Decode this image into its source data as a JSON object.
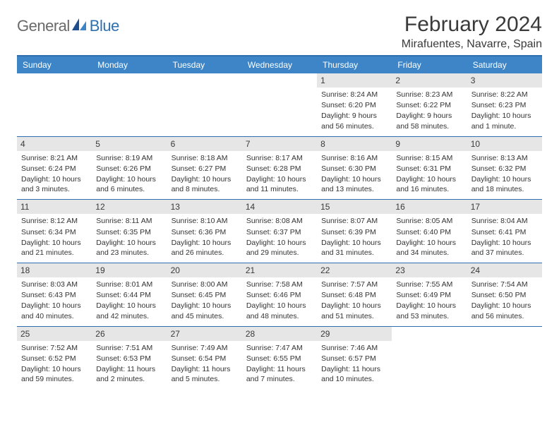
{
  "brand": {
    "general": "General",
    "blue": "Blue"
  },
  "header": {
    "month_title": "February 2024",
    "location": "Mirafuentes, Navarre, Spain"
  },
  "colors": {
    "accent": "#3d85c6",
    "rule": "#2f6fb0",
    "daybar": "#e6e6e6",
    "text": "#3a3a3a"
  },
  "weekdays": [
    "Sunday",
    "Monday",
    "Tuesday",
    "Wednesday",
    "Thursday",
    "Friday",
    "Saturday"
  ],
  "weeks": [
    [
      {
        "n": "",
        "sr": "",
        "ss": "",
        "dl": ""
      },
      {
        "n": "",
        "sr": "",
        "ss": "",
        "dl": ""
      },
      {
        "n": "",
        "sr": "",
        "ss": "",
        "dl": ""
      },
      {
        "n": "",
        "sr": "",
        "ss": "",
        "dl": ""
      },
      {
        "n": "1",
        "sr": "Sunrise: 8:24 AM",
        "ss": "Sunset: 6:20 PM",
        "dl": "Daylight: 9 hours and 56 minutes."
      },
      {
        "n": "2",
        "sr": "Sunrise: 8:23 AM",
        "ss": "Sunset: 6:22 PM",
        "dl": "Daylight: 9 hours and 58 minutes."
      },
      {
        "n": "3",
        "sr": "Sunrise: 8:22 AM",
        "ss": "Sunset: 6:23 PM",
        "dl": "Daylight: 10 hours and 1 minute."
      }
    ],
    [
      {
        "n": "4",
        "sr": "Sunrise: 8:21 AM",
        "ss": "Sunset: 6:24 PM",
        "dl": "Daylight: 10 hours and 3 minutes."
      },
      {
        "n": "5",
        "sr": "Sunrise: 8:19 AM",
        "ss": "Sunset: 6:26 PM",
        "dl": "Daylight: 10 hours and 6 minutes."
      },
      {
        "n": "6",
        "sr": "Sunrise: 8:18 AM",
        "ss": "Sunset: 6:27 PM",
        "dl": "Daylight: 10 hours and 8 minutes."
      },
      {
        "n": "7",
        "sr": "Sunrise: 8:17 AM",
        "ss": "Sunset: 6:28 PM",
        "dl": "Daylight: 10 hours and 11 minutes."
      },
      {
        "n": "8",
        "sr": "Sunrise: 8:16 AM",
        "ss": "Sunset: 6:30 PM",
        "dl": "Daylight: 10 hours and 13 minutes."
      },
      {
        "n": "9",
        "sr": "Sunrise: 8:15 AM",
        "ss": "Sunset: 6:31 PM",
        "dl": "Daylight: 10 hours and 16 minutes."
      },
      {
        "n": "10",
        "sr": "Sunrise: 8:13 AM",
        "ss": "Sunset: 6:32 PM",
        "dl": "Daylight: 10 hours and 18 minutes."
      }
    ],
    [
      {
        "n": "11",
        "sr": "Sunrise: 8:12 AM",
        "ss": "Sunset: 6:34 PM",
        "dl": "Daylight: 10 hours and 21 minutes."
      },
      {
        "n": "12",
        "sr": "Sunrise: 8:11 AM",
        "ss": "Sunset: 6:35 PM",
        "dl": "Daylight: 10 hours and 23 minutes."
      },
      {
        "n": "13",
        "sr": "Sunrise: 8:10 AM",
        "ss": "Sunset: 6:36 PM",
        "dl": "Daylight: 10 hours and 26 minutes."
      },
      {
        "n": "14",
        "sr": "Sunrise: 8:08 AM",
        "ss": "Sunset: 6:37 PM",
        "dl": "Daylight: 10 hours and 29 minutes."
      },
      {
        "n": "15",
        "sr": "Sunrise: 8:07 AM",
        "ss": "Sunset: 6:39 PM",
        "dl": "Daylight: 10 hours and 31 minutes."
      },
      {
        "n": "16",
        "sr": "Sunrise: 8:05 AM",
        "ss": "Sunset: 6:40 PM",
        "dl": "Daylight: 10 hours and 34 minutes."
      },
      {
        "n": "17",
        "sr": "Sunrise: 8:04 AM",
        "ss": "Sunset: 6:41 PM",
        "dl": "Daylight: 10 hours and 37 minutes."
      }
    ],
    [
      {
        "n": "18",
        "sr": "Sunrise: 8:03 AM",
        "ss": "Sunset: 6:43 PM",
        "dl": "Daylight: 10 hours and 40 minutes."
      },
      {
        "n": "19",
        "sr": "Sunrise: 8:01 AM",
        "ss": "Sunset: 6:44 PM",
        "dl": "Daylight: 10 hours and 42 minutes."
      },
      {
        "n": "20",
        "sr": "Sunrise: 8:00 AM",
        "ss": "Sunset: 6:45 PM",
        "dl": "Daylight: 10 hours and 45 minutes."
      },
      {
        "n": "21",
        "sr": "Sunrise: 7:58 AM",
        "ss": "Sunset: 6:46 PM",
        "dl": "Daylight: 10 hours and 48 minutes."
      },
      {
        "n": "22",
        "sr": "Sunrise: 7:57 AM",
        "ss": "Sunset: 6:48 PM",
        "dl": "Daylight: 10 hours and 51 minutes."
      },
      {
        "n": "23",
        "sr": "Sunrise: 7:55 AM",
        "ss": "Sunset: 6:49 PM",
        "dl": "Daylight: 10 hours and 53 minutes."
      },
      {
        "n": "24",
        "sr": "Sunrise: 7:54 AM",
        "ss": "Sunset: 6:50 PM",
        "dl": "Daylight: 10 hours and 56 minutes."
      }
    ],
    [
      {
        "n": "25",
        "sr": "Sunrise: 7:52 AM",
        "ss": "Sunset: 6:52 PM",
        "dl": "Daylight: 10 hours and 59 minutes."
      },
      {
        "n": "26",
        "sr": "Sunrise: 7:51 AM",
        "ss": "Sunset: 6:53 PM",
        "dl": "Daylight: 11 hours and 2 minutes."
      },
      {
        "n": "27",
        "sr": "Sunrise: 7:49 AM",
        "ss": "Sunset: 6:54 PM",
        "dl": "Daylight: 11 hours and 5 minutes."
      },
      {
        "n": "28",
        "sr": "Sunrise: 7:47 AM",
        "ss": "Sunset: 6:55 PM",
        "dl": "Daylight: 11 hours and 7 minutes."
      },
      {
        "n": "29",
        "sr": "Sunrise: 7:46 AM",
        "ss": "Sunset: 6:57 PM",
        "dl": "Daylight: 11 hours and 10 minutes."
      },
      {
        "n": "",
        "sr": "",
        "ss": "",
        "dl": ""
      },
      {
        "n": "",
        "sr": "",
        "ss": "",
        "dl": ""
      }
    ]
  ]
}
